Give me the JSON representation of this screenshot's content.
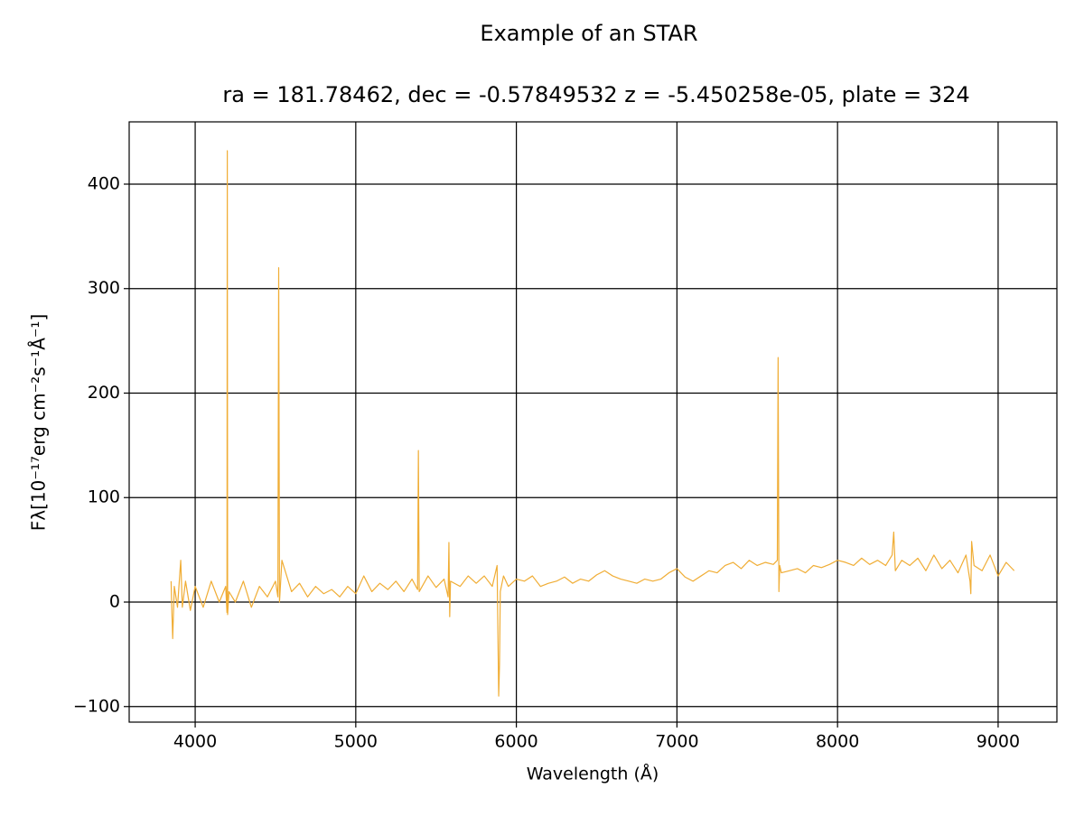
{
  "chart_data": {
    "type": "line",
    "title": "Example of an STAR",
    "subtitle": "ra = 181.78462, dec = -0.57849532 z = -5.450258e-05, plate = 324",
    "x_label": "Wavelength (Å)",
    "y_label": "Fλ[10⁻¹⁷erg cm⁻²s⁻¹Å⁻¹]",
    "x": [
      3850,
      3855,
      3860,
      3870,
      3890,
      3910,
      3920,
      3940,
      3970,
      4000,
      4050,
      4100,
      4150,
      4190,
      4198,
      4200,
      4202,
      4210,
      4250,
      4300,
      4350,
      4400,
      4450,
      4500,
      4515,
      4520,
      4525,
      4540,
      4600,
      4650,
      4700,
      4750,
      4800,
      4850,
      4900,
      4950,
      5000,
      5050,
      5100,
      5150,
      5200,
      5250,
      5300,
      5350,
      5385,
      5390,
      5395,
      5450,
      5500,
      5550,
      5575,
      5580,
      5585,
      5590,
      5650,
      5700,
      5750,
      5800,
      5850,
      5880,
      5890,
      5895,
      5900,
      5920,
      5950,
      6000,
      6050,
      6100,
      6150,
      6200,
      6250,
      6300,
      6350,
      6400,
      6450,
      6500,
      6550,
      6600,
      6650,
      6700,
      6750,
      6800,
      6850,
      6900,
      6950,
      7000,
      7050,
      7100,
      7150,
      7200,
      7250,
      7300,
      7350,
      7400,
      7450,
      7500,
      7550,
      7600,
      7625,
      7630,
      7635,
      7640,
      7650,
      7700,
      7750,
      7800,
      7850,
      7900,
      7950,
      8000,
      8050,
      8100,
      8150,
      8200,
      8250,
      8300,
      8340,
      8350,
      8360,
      8400,
      8450,
      8500,
      8550,
      8600,
      8650,
      8700,
      8750,
      8800,
      8825,
      8830,
      8835,
      8850,
      8900,
      8950,
      9000,
      9050,
      9100
    ],
    "series": [
      {
        "color": "#f0ad35",
        "values": [
          20,
          -10,
          -35,
          15,
          -5,
          40,
          -5,
          20,
          -8,
          15,
          -5,
          20,
          0,
          15,
          -10,
          432,
          -12,
          10,
          0,
          20,
          -5,
          15,
          5,
          20,
          5,
          320,
          0,
          40,
          10,
          18,
          5,
          15,
          8,
          12,
          5,
          15,
          8,
          25,
          10,
          18,
          12,
          20,
          10,
          22,
          12,
          145,
          10,
          25,
          14,
          22,
          5,
          57,
          -14,
          20,
          15,
          25,
          18,
          25,
          15,
          35,
          -90,
          -60,
          10,
          25,
          15,
          22,
          20,
          25,
          15,
          18,
          20,
          24,
          18,
          22,
          20,
          26,
          30,
          25,
          22,
          20,
          18,
          22,
          20,
          22,
          28,
          32,
          24,
          20,
          25,
          30,
          28,
          35,
          38,
          32,
          40,
          35,
          38,
          36,
          40,
          234,
          10,
          35,
          28,
          30,
          32,
          28,
          35,
          33,
          36,
          40,
          38,
          35,
          42,
          36,
          40,
          35,
          45,
          67,
          30,
          40,
          35,
          42,
          30,
          45,
          32,
          40,
          28,
          45,
          20,
          8,
          58,
          35,
          30,
          45,
          25,
          38,
          30
        ]
      }
    ],
    "xlim": [
      3589,
      9366
    ],
    "ylim": [
      -114.9,
      459.6
    ],
    "xticks": [
      4000,
      5000,
      6000,
      7000,
      8000,
      9000
    ],
    "yticks": [
      {
        "value": -100,
        "label": "−100"
      },
      0,
      100,
      200,
      300,
      400
    ],
    "grid": true
  }
}
